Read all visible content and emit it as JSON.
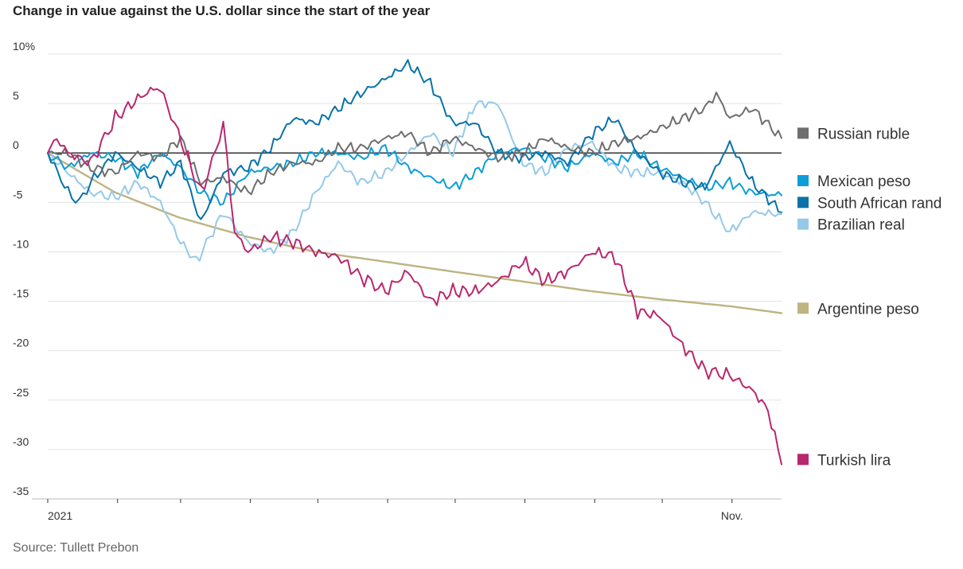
{
  "chart_data": {
    "type": "line",
    "title": "Change in value against the U.S. dollar since the start of the year",
    "source": "Source: Tullett Prebon",
    "xlabel": "",
    "ylabel": "",
    "ylim": [
      -35,
      10
    ],
    "xlim": [
      "2021-01-01",
      "2021-11-23"
    ],
    "y_ticks": [
      {
        "value": 10,
        "label": "10%"
      },
      {
        "value": 5,
        "label": "5"
      },
      {
        "value": 0,
        "label": "0"
      },
      {
        "value": -5,
        "label": "-5"
      },
      {
        "value": -10,
        "label": "-10"
      },
      {
        "value": -15,
        "label": "-15"
      },
      {
        "value": -20,
        "label": "-20"
      },
      {
        "value": -25,
        "label": "-25"
      },
      {
        "value": -30,
        "label": "-30"
      },
      {
        "value": -35,
        "label": "-35"
      }
    ],
    "x_ticks": [
      {
        "value": "2021-01-01",
        "label": "2021"
      },
      {
        "value": "2021-02-01",
        "label": ""
      },
      {
        "value": "2021-03-01",
        "label": ""
      },
      {
        "value": "2021-04-01",
        "label": ""
      },
      {
        "value": "2021-05-01",
        "label": ""
      },
      {
        "value": "2021-06-01",
        "label": ""
      },
      {
        "value": "2021-07-01",
        "label": ""
      },
      {
        "value": "2021-08-01",
        "label": ""
      },
      {
        "value": "2021-09-01",
        "label": ""
      },
      {
        "value": "2021-10-01",
        "label": ""
      },
      {
        "value": "2021-11-01",
        "label": "Nov."
      }
    ],
    "grid": true,
    "legend": "right, labels beside series ends",
    "series": [
      {
        "name": "Russian ruble",
        "color": "#6e6e6e",
        "label_y": 2,
        "x": [
          "2021-01-01",
          "2021-01-10",
          "2021-01-20",
          "2021-01-31",
          "2021-02-10",
          "2021-02-20",
          "2021-03-01",
          "2021-03-10",
          "2021-03-20",
          "2021-03-31",
          "2021-04-10",
          "2021-04-20",
          "2021-04-30",
          "2021-05-10",
          "2021-05-20",
          "2021-05-31",
          "2021-06-10",
          "2021-06-20",
          "2021-06-30",
          "2021-07-10",
          "2021-07-20",
          "2021-07-31",
          "2021-08-10",
          "2021-08-20",
          "2021-08-31",
          "2021-09-10",
          "2021-09-20",
          "2021-09-30",
          "2021-10-10",
          "2021-10-20",
          "2021-10-25",
          "2021-10-31",
          "2021-11-10",
          "2021-11-23"
        ],
        "values": [
          0,
          0,
          -1.5,
          -2,
          0,
          -0.5,
          1.5,
          -3,
          -2.5,
          -4,
          -2,
          -1,
          -1,
          0.5,
          0.5,
          1.5,
          2,
          0,
          1.5,
          0.5,
          -0.5,
          0,
          1.5,
          0.5,
          0,
          1,
          1.5,
          2.5,
          3.5,
          4.5,
          6,
          3.5,
          4.5,
          1.5
        ]
      },
      {
        "name": "Mexican peso",
        "color": "#0d9ed8",
        "label_y": -2.8,
        "x": [
          "2021-01-01",
          "2021-01-10",
          "2021-01-20",
          "2021-01-31",
          "2021-02-10",
          "2021-02-20",
          "2021-03-01",
          "2021-03-10",
          "2021-03-20",
          "2021-03-31",
          "2021-04-10",
          "2021-04-20",
          "2021-04-30",
          "2021-05-10",
          "2021-05-20",
          "2021-05-31",
          "2021-06-10",
          "2021-06-20",
          "2021-06-30",
          "2021-07-10",
          "2021-07-20",
          "2021-07-31",
          "2021-08-10",
          "2021-08-20",
          "2021-08-31",
          "2021-09-10",
          "2021-09-20",
          "2021-09-30",
          "2021-10-10",
          "2021-10-20",
          "2021-10-31",
          "2021-11-10",
          "2021-11-23"
        ],
        "values": [
          0,
          -1.5,
          0,
          -0.5,
          -2,
          0,
          -1.5,
          -4,
          -5,
          -2,
          -1.5,
          -1,
          0,
          0,
          -0.5,
          0.5,
          -1.5,
          -2.5,
          -3.5,
          -2,
          0,
          0.5,
          -0.5,
          -1.5,
          0,
          -1,
          0,
          -1.5,
          -2.5,
          -3.5,
          -3,
          -4,
          -4.3
        ]
      },
      {
        "name": "South African rand",
        "color": "#0a72a8",
        "label_y": -5,
        "x": [
          "2021-01-01",
          "2021-01-10",
          "2021-01-15",
          "2021-01-20",
          "2021-01-31",
          "2021-02-10",
          "2021-02-20",
          "2021-03-01",
          "2021-03-10",
          "2021-03-20",
          "2021-03-31",
          "2021-04-10",
          "2021-04-20",
          "2021-04-30",
          "2021-05-10",
          "2021-05-20",
          "2021-05-31",
          "2021-06-10",
          "2021-06-20",
          "2021-06-30",
          "2021-07-10",
          "2021-07-20",
          "2021-07-31",
          "2021-08-10",
          "2021-08-20",
          "2021-08-31",
          "2021-09-10",
          "2021-09-20",
          "2021-09-30",
          "2021-10-10",
          "2021-10-20",
          "2021-10-31",
          "2021-11-10",
          "2021-11-23"
        ],
        "values": [
          0,
          -4,
          -5,
          -3,
          0,
          -1.5,
          -3,
          -1,
          -7,
          -2,
          -1.5,
          0.5,
          3.5,
          3,
          4.5,
          6,
          7.5,
          9,
          7,
          3,
          3,
          0,
          -0.5,
          0,
          -1,
          2,
          3.5,
          0,
          -2,
          -3,
          -3.5,
          1,
          -3,
          -6
        ]
      },
      {
        "name": "Brazilian real",
        "color": "#96c9e9",
        "label_y": -7.2,
        "x": [
          "2021-01-01",
          "2021-01-10",
          "2021-01-20",
          "2021-01-31",
          "2021-02-10",
          "2021-02-20",
          "2021-03-01",
          "2021-03-08",
          "2021-03-20",
          "2021-03-31",
          "2021-04-10",
          "2021-04-20",
          "2021-04-30",
          "2021-05-10",
          "2021-05-20",
          "2021-05-31",
          "2021-06-10",
          "2021-06-20",
          "2021-06-30",
          "2021-07-10",
          "2021-07-20",
          "2021-07-31",
          "2021-08-10",
          "2021-08-20",
          "2021-08-31",
          "2021-09-10",
          "2021-09-20",
          "2021-09-30",
          "2021-10-10",
          "2021-10-20",
          "2021-10-31",
          "2021-11-10",
          "2021-11-23"
        ],
        "values": [
          0,
          -2,
          -4,
          -4.5,
          -3,
          -5,
          -9,
          -11,
          -6,
          -9,
          -10,
          -8,
          -4,
          -1,
          -3,
          -2,
          0,
          2,
          0,
          5,
          5,
          -1,
          -2,
          0.5,
          1,
          -1.5,
          -2,
          -2,
          -3,
          -5,
          -8,
          -6,
          -6.2
        ]
      },
      {
        "name": "Argentine peso",
        "color": "#bdb481",
        "label_y": -15.7,
        "x": [
          "2021-01-01",
          "2021-01-31",
          "2021-02-28",
          "2021-03-31",
          "2021-04-30",
          "2021-05-31",
          "2021-06-30",
          "2021-07-31",
          "2021-08-31",
          "2021-09-30",
          "2021-10-31",
          "2021-11-23"
        ],
        "values": [
          0,
          -4,
          -6.5,
          -8.5,
          -10,
          -11,
          -12,
          -13,
          -14,
          -14.8,
          -15.5,
          -16.2
        ]
      },
      {
        "name": "Turkish lira",
        "color": "#b8286f",
        "label_y": -31,
        "x": [
          "2021-01-01",
          "2021-01-05",
          "2021-01-10",
          "2021-01-20",
          "2021-01-31",
          "2021-02-10",
          "2021-02-17",
          "2021-02-20",
          "2021-02-28",
          "2021-03-10",
          "2021-03-15",
          "2021-03-20",
          "2021-03-25",
          "2021-03-31",
          "2021-04-10",
          "2021-04-20",
          "2021-04-30",
          "2021-05-10",
          "2021-05-20",
          "2021-05-31",
          "2021-06-10",
          "2021-06-20",
          "2021-06-30",
          "2021-07-10",
          "2021-07-20",
          "2021-07-31",
          "2021-08-10",
          "2021-08-20",
          "2021-08-31",
          "2021-09-10",
          "2021-09-20",
          "2021-09-30",
          "2021-10-10",
          "2021-10-20",
          "2021-10-31",
          "2021-11-10",
          "2021-11-17",
          "2021-11-23"
        ],
        "values": [
          0,
          1.5,
          0,
          -1,
          3.5,
          5.5,
          6.5,
          6.5,
          2,
          -4,
          -1,
          3,
          -8,
          -10,
          -8.5,
          -9,
          -10,
          -10.5,
          -12.5,
          -14,
          -12,
          -15,
          -14,
          -14,
          -13,
          -11,
          -13,
          -12,
          -10,
          -10.5,
          -16,
          -16.5,
          -19.5,
          -22,
          -22.5,
          -24,
          -26,
          -31.5
        ]
      }
    ]
  }
}
